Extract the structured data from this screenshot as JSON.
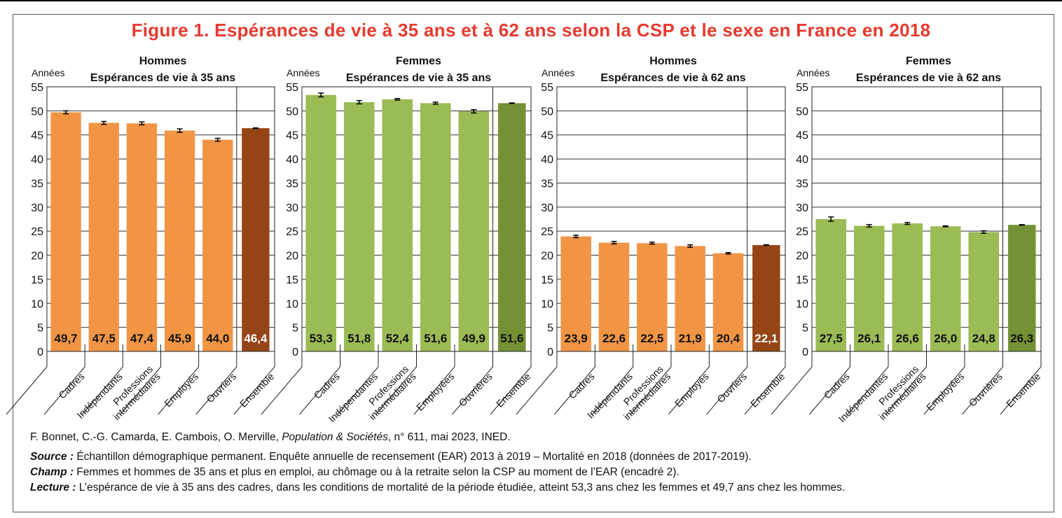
{
  "figure_title": "Figure 1. Espérances de vie à 35 ans et à 62 ans selon la CSP et le sexe en France en 2018",
  "colors": {
    "title": "#e63a2e",
    "hommes_bar": "#f19544",
    "hommes_total": "#954515",
    "femmes_bar": "#9bbb54",
    "femmes_total": "#749235"
  },
  "chart_data": [
    {
      "type": "bar",
      "sex": "Hommes",
      "title_line1": "Hommes",
      "title_line2": "Espérances de vie à 35 ans",
      "ylabel": "Années",
      "ylim": [
        0,
        55
      ],
      "yticks": [
        0,
        5,
        10,
        15,
        20,
        25,
        30,
        35,
        40,
        45,
        50,
        55
      ],
      "grid": true,
      "categories": [
        "Cadres",
        "Indépendants",
        "Professions intermédiaires",
        "Employés",
        "Ouvriers",
        "Ensemble"
      ],
      "category_lines": [
        [
          "Cadres"
        ],
        [
          "Indépendants"
        ],
        [
          "Professions",
          "intermédiaires"
        ],
        [
          "Employés"
        ],
        [
          "Ouvriers"
        ],
        [
          "Ensemble"
        ]
      ],
      "values": [
        49.7,
        47.5,
        47.4,
        45.9,
        44.0,
        46.4
      ],
      "labels": [
        "49,7",
        "47,5",
        "47,4",
        "45,9",
        "44,0",
        "46,4"
      ],
      "error_half_width": [
        0.3,
        0.3,
        0.3,
        0.35,
        0.3,
        0.05
      ],
      "palette": "hommes"
    },
    {
      "type": "bar",
      "sex": "Femmes",
      "title_line1": "Femmes",
      "title_line2": "Espérances de vie à 35 ans",
      "ylabel": "Années",
      "ylim": [
        0,
        55
      ],
      "yticks": [
        0,
        5,
        10,
        15,
        20,
        25,
        30,
        35,
        40,
        45,
        50,
        55
      ],
      "grid": true,
      "categories": [
        "Cadres",
        "Indépendantes",
        "Professions intermédiaires",
        "Employées",
        "Ouvrières",
        "Ensemble"
      ],
      "category_lines": [
        [
          "Cadres"
        ],
        [
          "Indépendantes"
        ],
        [
          "Professions",
          "intermédiaires"
        ],
        [
          "Employées"
        ],
        [
          "Ouvrières"
        ],
        [
          "Ensemble"
        ]
      ],
      "values": [
        53.3,
        51.8,
        52.4,
        51.6,
        49.9,
        51.6
      ],
      "labels": [
        "53,3",
        "51,8",
        "52,4",
        "51,6",
        "49,9",
        "51,6"
      ],
      "error_half_width": [
        0.4,
        0.35,
        0.15,
        0.2,
        0.35,
        0.05
      ],
      "palette": "femmes"
    },
    {
      "type": "bar",
      "sex": "Hommes",
      "title_line1": "Hommes",
      "title_line2": "Espérances de vie à 62 ans",
      "ylabel": "Années",
      "ylim": [
        0,
        55
      ],
      "yticks": [
        0,
        5,
        10,
        15,
        20,
        25,
        30,
        35,
        40,
        45,
        50,
        55
      ],
      "grid": true,
      "categories": [
        "Cadres",
        "Indépendants",
        "Professions intermédiaires",
        "Employés",
        "Ouvriers",
        "Ensemble"
      ],
      "category_lines": [
        [
          "Cadres"
        ],
        [
          "Indépendants"
        ],
        [
          "Professions",
          "intermédiaires"
        ],
        [
          "Employés"
        ],
        [
          "Ouvriers"
        ],
        [
          "Ensemble"
        ]
      ],
      "values": [
        23.9,
        22.6,
        22.5,
        21.9,
        20.4,
        22.1
      ],
      "labels": [
        "23,9",
        "22,6",
        "22,5",
        "21,9",
        "20,4",
        "22,1"
      ],
      "error_half_width": [
        0.25,
        0.25,
        0.2,
        0.25,
        0.15,
        0.05
      ],
      "palette": "hommes"
    },
    {
      "type": "bar",
      "sex": "Femmes",
      "title_line1": "Femmes",
      "title_line2": "Espérances de vie à 62 ans",
      "ylabel": "Années",
      "ylim": [
        0,
        55
      ],
      "yticks": [
        0,
        5,
        10,
        15,
        20,
        25,
        30,
        35,
        40,
        45,
        50,
        55
      ],
      "grid": true,
      "categories": [
        "Cadres",
        "Indépendantes",
        "Professions intermédiaires",
        "Employées",
        "Ouvrières",
        "Ensemble"
      ],
      "category_lines": [
        [
          "Cadres"
        ],
        [
          "Indépendantes"
        ],
        [
          "Professions",
          "intermédiaires"
        ],
        [
          "Employées"
        ],
        [
          "Ouvrières"
        ],
        [
          "Ensemble"
        ]
      ],
      "values": [
        27.5,
        26.1,
        26.6,
        26.0,
        24.8,
        26.3
      ],
      "labels": [
        "27,5",
        "26,1",
        "26,6",
        "26,0",
        "24,8",
        "26,3"
      ],
      "error_half_width": [
        0.45,
        0.25,
        0.2,
        0.1,
        0.25,
        0.05
      ],
      "palette": "femmes"
    }
  ],
  "footer": {
    "citation_authors": "F. Bonnet, C.-G. Camarda, E. Cambois, O. Merville, ",
    "citation_journal": "Population & Sociétés",
    "citation_rest": ", n° 611, mai 2023, INED.",
    "source_label": "Source :",
    "source_text": " Échantillon démographique permanent. Enquête annuelle de recensement (EAR) 2013 à 2019 – Mortalité en 2018 (données de 2017-2019).",
    "champ_label": "Champ :",
    "champ_text": " Femmes et hommes de 35 ans et plus en emploi, au chômage ou à la retraite selon la CSP au moment de l’EAR (encadré 2).",
    "lecture_label": "Lecture :",
    "lecture_text": " L’espérance de vie à 35 ans des cadres, dans les conditions de mortalité de la période étudiée, atteint 53,3 ans chez les femmes et 49,7 ans chez les hommes."
  }
}
